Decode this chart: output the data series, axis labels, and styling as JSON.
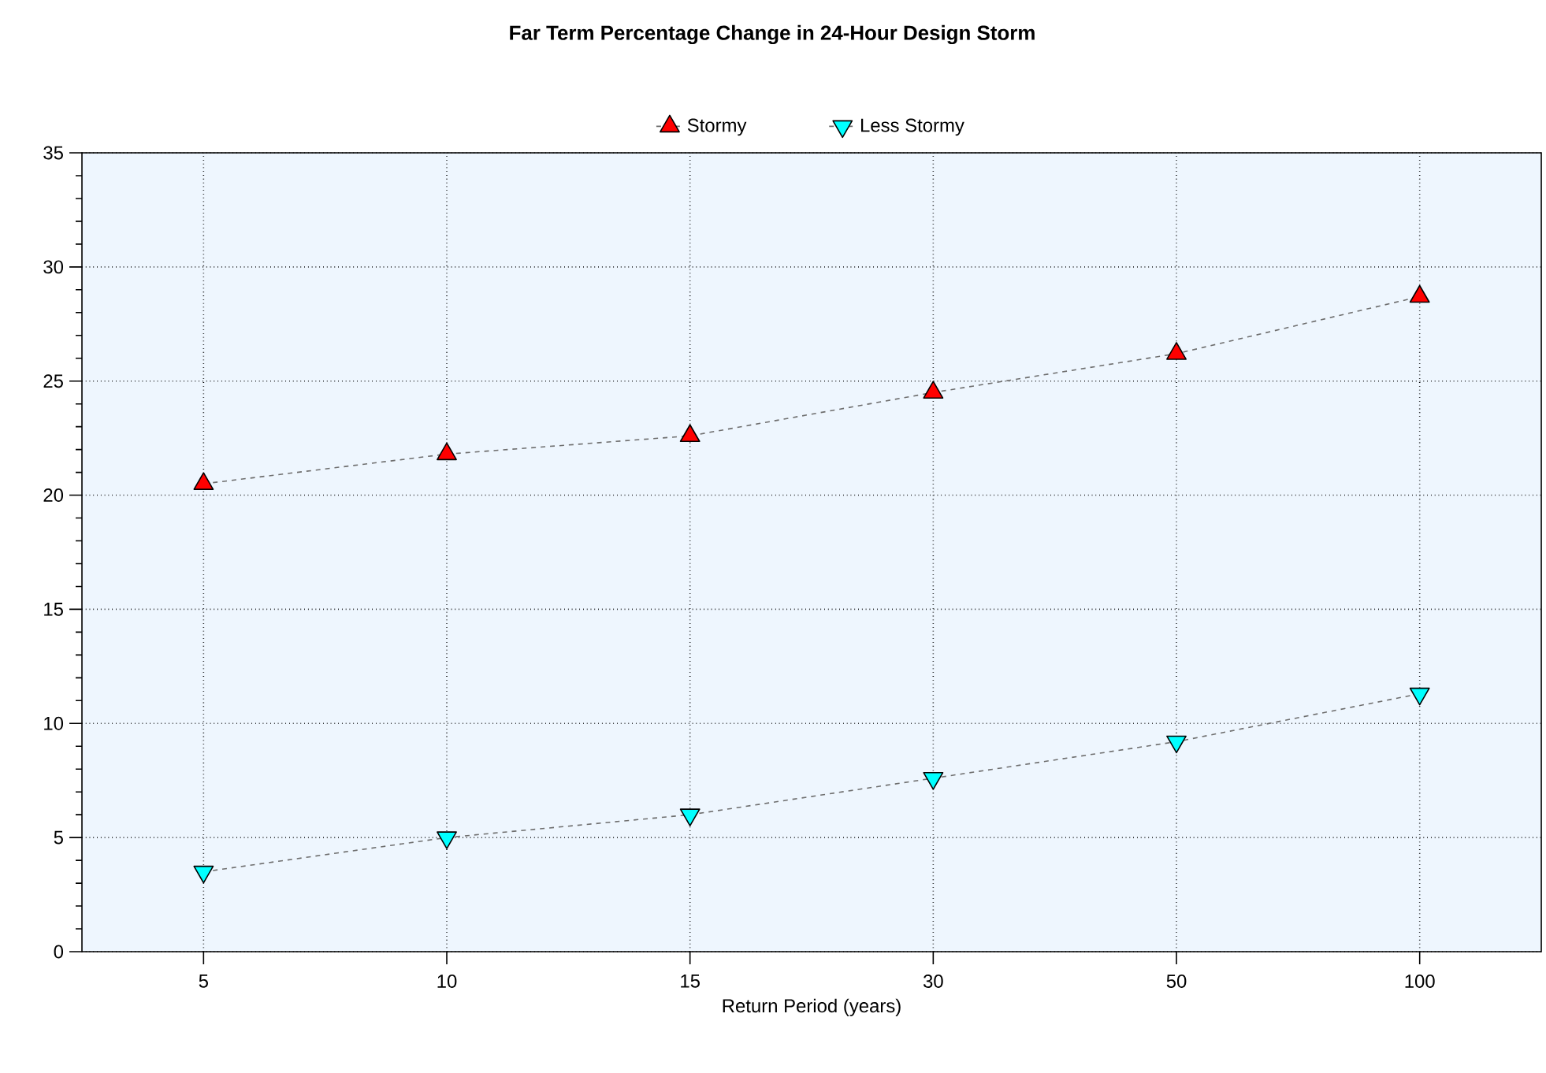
{
  "chart_data": {
    "type": "line",
    "title": "Far Term Percentage Change in 24-Hour Design Storm",
    "xlabel": "Return Period (years)",
    "categories": [
      "5",
      "10",
      "15",
      "30",
      "50",
      "100"
    ],
    "series": [
      {
        "name": "Stormy",
        "color": "#ff0000",
        "marker": "triangle",
        "values": [
          20.5,
          21.8,
          22.6,
          24.5,
          26.2,
          28.7
        ]
      },
      {
        "name": "Less Stormy",
        "color": "#00ffff",
        "marker": "triangle-down",
        "values": [
          3.5,
          5.0,
          6.0,
          7.6,
          9.2,
          11.3
        ]
      }
    ],
    "ylim": [
      0,
      35
    ],
    "yticks": [
      0,
      5,
      10,
      15,
      20,
      25,
      30,
      35
    ],
    "grid": true,
    "legend": "top",
    "line_style": "dashed"
  }
}
